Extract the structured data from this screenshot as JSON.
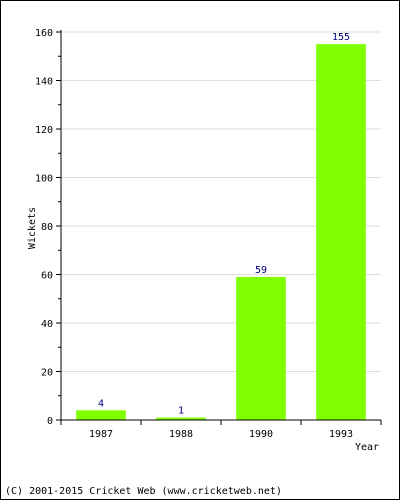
{
  "chart_data": {
    "type": "bar",
    "categories": [
      "1987",
      "1988",
      "1990",
      "1993"
    ],
    "values": [
      4,
      1,
      59,
      155
    ],
    "data_labels": [
      "4",
      "1",
      "59",
      "155"
    ],
    "xlabel": "Year",
    "ylabel": "Wickets",
    "ylim": [
      0,
      160
    ],
    "yticks": [
      0,
      20,
      40,
      60,
      80,
      100,
      120,
      140,
      160
    ],
    "ytick_labels": [
      "0",
      "20",
      "40",
      "60",
      "80",
      "100",
      "120",
      "140",
      "160"
    ],
    "grid": true,
    "bar_color": "#80ff00",
    "label_color": "#00007f",
    "grid_color": "#dddddd"
  },
  "footer": {
    "copyright": "(C) 2001-2015 Cricket Web (www.cricketweb.net)"
  }
}
